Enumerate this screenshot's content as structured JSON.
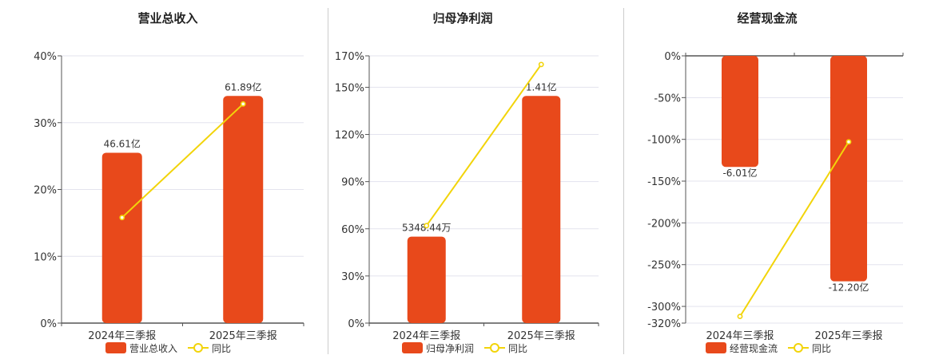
{
  "colors": {
    "bar": "#E8491B",
    "line": "#F2D40A",
    "grid": "#E3E3EE",
    "axis": "#555555"
  },
  "legend": {
    "line_label": "同比"
  },
  "chart_data": [
    {
      "type": "bar",
      "title": "营业总收入",
      "categories": [
        "2024年三季报",
        "2025年三季报"
      ],
      "series": [
        {
          "name": "营业总收入",
          "kind": "bar",
          "values": [
            25.5,
            34.0
          ],
          "labels": [
            "46.61亿",
            "61.89亿"
          ]
        },
        {
          "name": "同比",
          "kind": "line",
          "values": [
            15.8,
            32.8
          ]
        }
      ],
      "ylim": [
        0,
        40
      ],
      "yticks": [
        0,
        10,
        20,
        30,
        40
      ],
      "ytick_labels": [
        "0%",
        "10%",
        "20%",
        "30%",
        "40%"
      ],
      "grid": true
    },
    {
      "type": "bar",
      "title": "归母净利润",
      "categories": [
        "2024年三季报",
        "2025年三季报"
      ],
      "series": [
        {
          "name": "归母净利润",
          "kind": "bar",
          "values": [
            55.0,
            144.5
          ],
          "labels": [
            "5348.44万",
            "1.41亿"
          ]
        },
        {
          "name": "同比",
          "kind": "line",
          "values": [
            62.0,
            164.5
          ]
        }
      ],
      "ylim": [
        0,
        170
      ],
      "yticks": [
        0,
        30,
        60,
        90,
        120,
        150,
        170
      ],
      "ytick_labels": [
        "0%",
        "30%",
        "60%",
        "90%",
        "120%",
        "150%",
        "170%"
      ],
      "grid": true
    },
    {
      "type": "bar",
      "title": "经营现金流",
      "categories": [
        "2024年三季报",
        "2025年三季报"
      ],
      "series": [
        {
          "name": "经营现金流",
          "kind": "bar",
          "values": [
            -133.0,
            -270.0
          ],
          "labels": [
            "-6.01亿",
            "-12.20亿"
          ]
        },
        {
          "name": "同比",
          "kind": "line",
          "values": [
            -312.0,
            -103.0
          ]
        }
      ],
      "ylim": [
        -320,
        0
      ],
      "yticks": [
        0,
        -50,
        -100,
        -150,
        -200,
        -250,
        -300,
        -320
      ],
      "ytick_labels": [
        "0%",
        "-50%",
        "-100%",
        "-150%",
        "-200%",
        "-250%",
        "-300%",
        "-320%"
      ],
      "grid": true
    }
  ]
}
